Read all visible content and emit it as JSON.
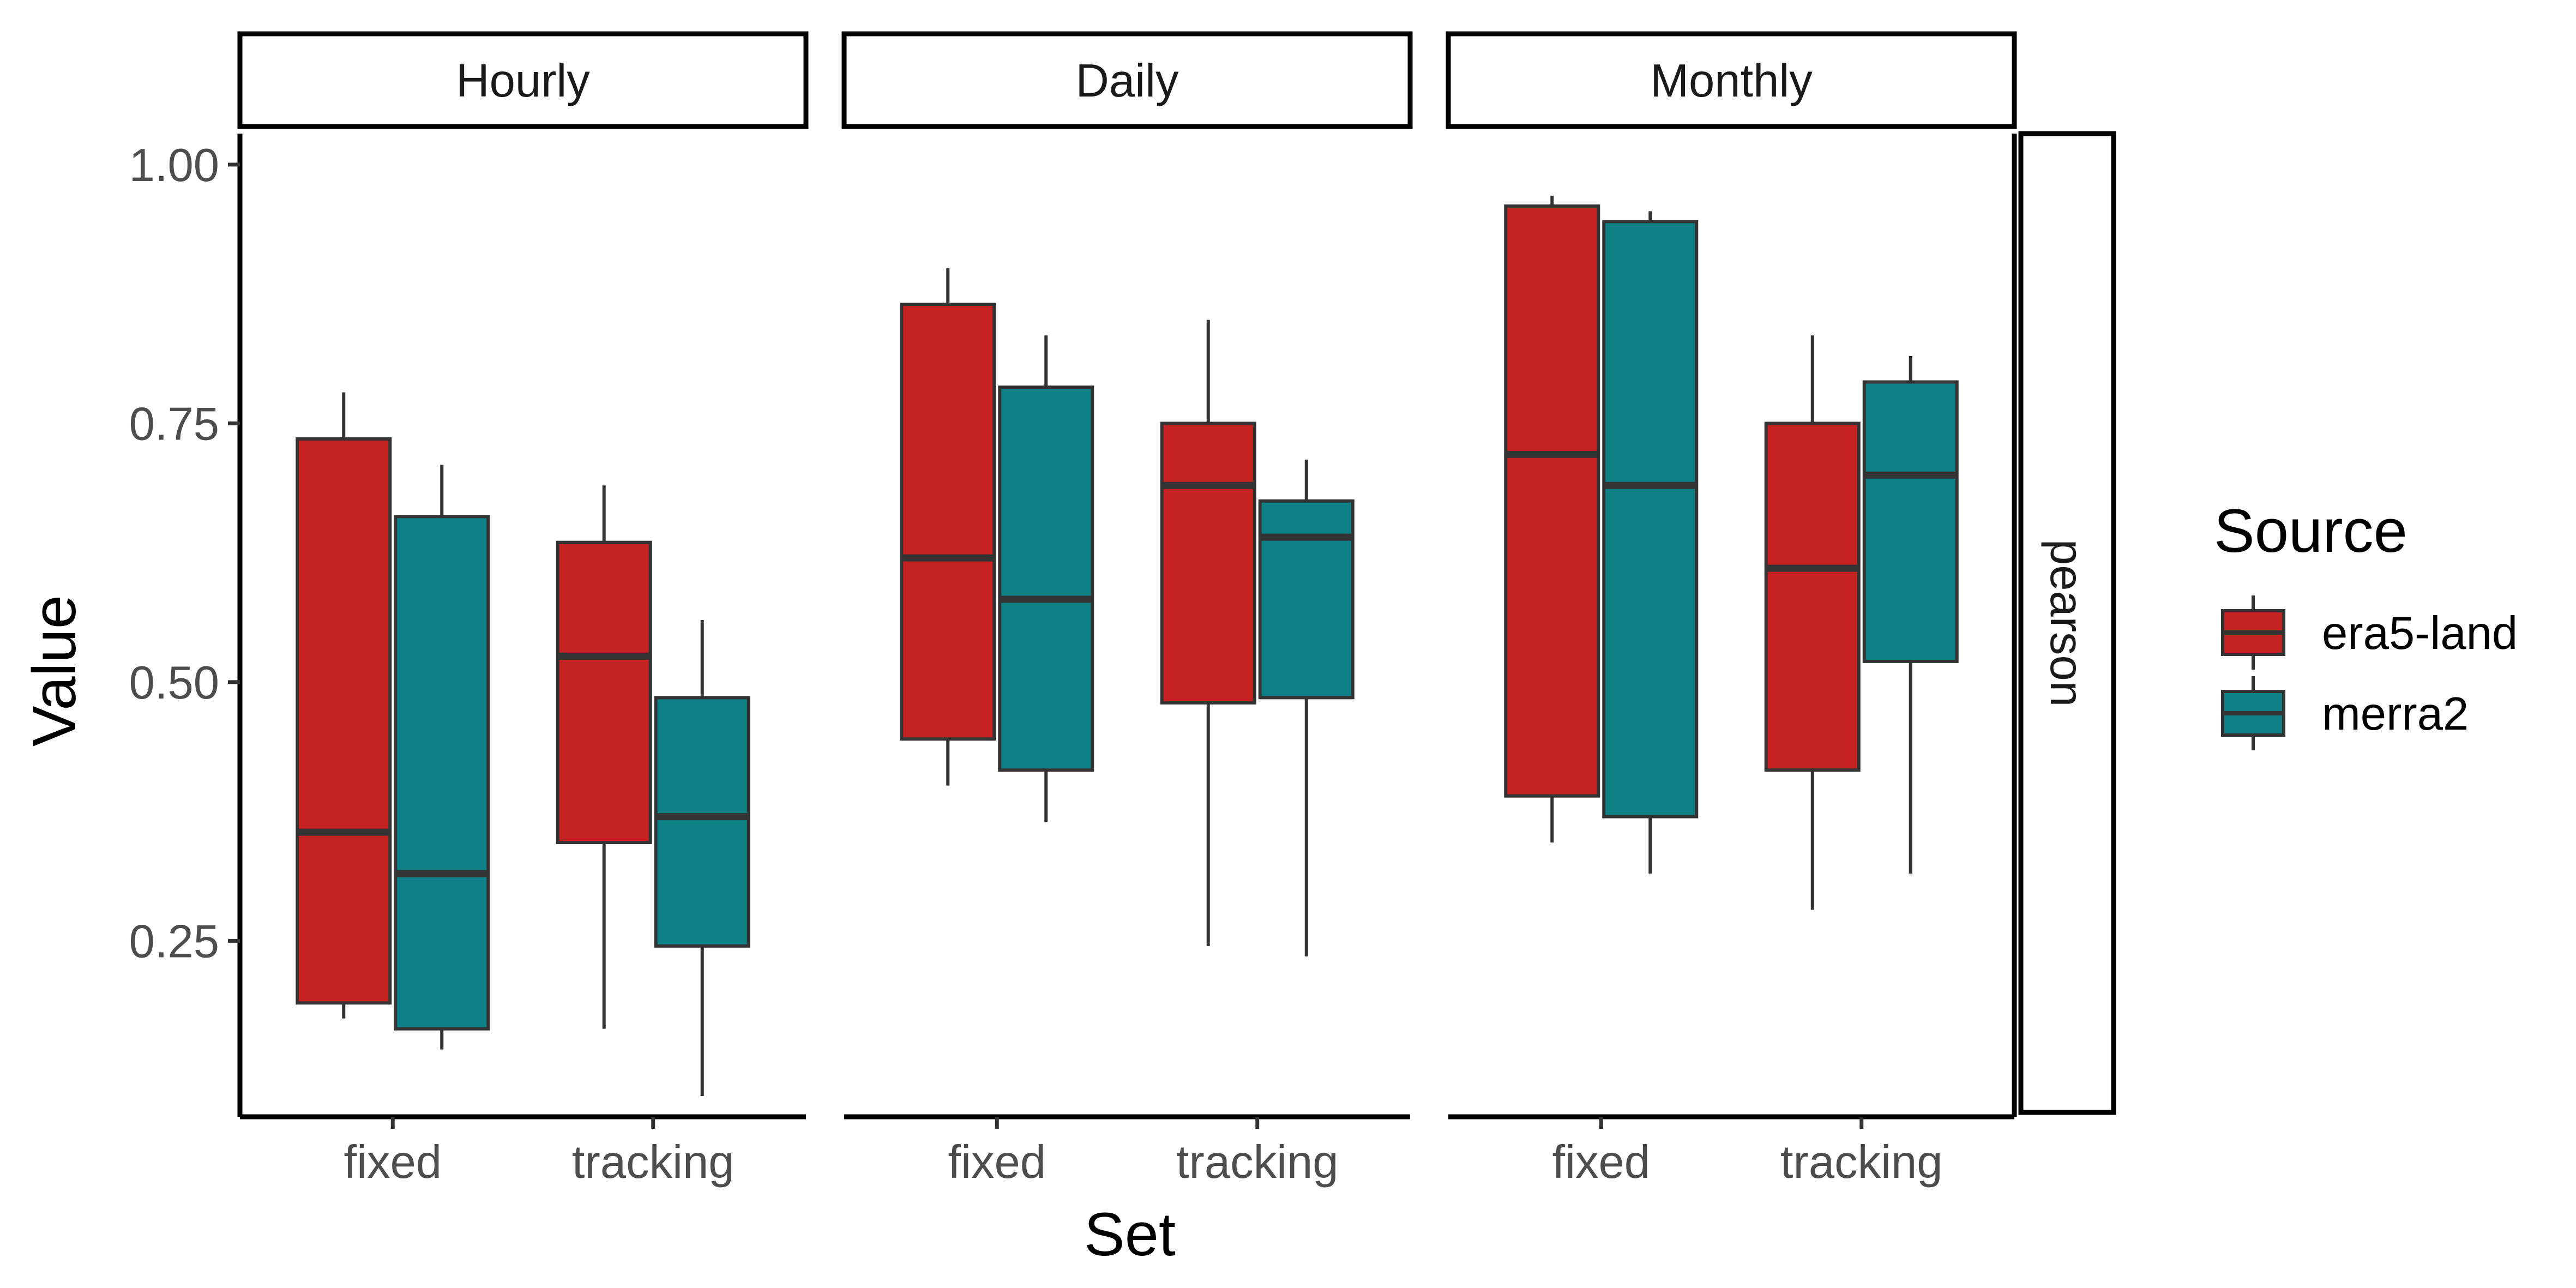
{
  "chart_data": {
    "type": "boxplot",
    "facets": [
      "Hourly",
      "Daily",
      "Monthly"
    ],
    "row_strip": "pearson",
    "categories": [
      "fixed",
      "tracking"
    ],
    "xlabel": "Set",
    "ylabel": "Value",
    "ylim": [
      0.08,
      1.03
    ],
    "yticks": [
      0.25,
      0.5,
      0.75,
      1.0
    ],
    "ytick_labels": [
      "0.25",
      "0.50",
      "0.75",
      "1.00"
    ],
    "legend": {
      "title": "Source",
      "position": "right",
      "entries": [
        {
          "name": "era5-land",
          "color": "#C62222"
        },
        {
          "name": "merra2",
          "color": "#0E8186"
        }
      ]
    },
    "series": [
      {
        "name": "era5-land",
        "color": "#C62222",
        "boxes": [
          {
            "facet": "Hourly",
            "category": "fixed",
            "min": 0.175,
            "q1": 0.19,
            "median": 0.355,
            "q3": 0.735,
            "max": 0.78
          },
          {
            "facet": "Hourly",
            "category": "tracking",
            "min": 0.165,
            "q1": 0.345,
            "median": 0.525,
            "q3": 0.635,
            "max": 0.69
          },
          {
            "facet": "Daily",
            "category": "fixed",
            "min": 0.4,
            "q1": 0.445,
            "median": 0.62,
            "q3": 0.865,
            "max": 0.9
          },
          {
            "facet": "Daily",
            "category": "tracking",
            "min": 0.245,
            "q1": 0.48,
            "median": 0.69,
            "q3": 0.75,
            "max": 0.85
          },
          {
            "facet": "Monthly",
            "category": "fixed",
            "min": 0.345,
            "q1": 0.39,
            "median": 0.72,
            "q3": 0.96,
            "max": 0.97
          },
          {
            "facet": "Monthly",
            "category": "tracking",
            "min": 0.28,
            "q1": 0.415,
            "median": 0.61,
            "q3": 0.75,
            "max": 0.835
          }
        ]
      },
      {
        "name": "merra2",
        "color": "#0E8186",
        "boxes": [
          {
            "facet": "Hourly",
            "category": "fixed",
            "min": 0.145,
            "q1": 0.165,
            "median": 0.315,
            "q3": 0.66,
            "max": 0.71
          },
          {
            "facet": "Hourly",
            "category": "tracking",
            "min": 0.1,
            "q1": 0.245,
            "median": 0.37,
            "q3": 0.485,
            "max": 0.56
          },
          {
            "facet": "Daily",
            "category": "fixed",
            "min": 0.365,
            "q1": 0.415,
            "median": 0.58,
            "q3": 0.785,
            "max": 0.835
          },
          {
            "facet": "Daily",
            "category": "tracking",
            "min": 0.235,
            "q1": 0.485,
            "median": 0.64,
            "q3": 0.675,
            "max": 0.715
          },
          {
            "facet": "Monthly",
            "category": "fixed",
            "min": 0.315,
            "q1": 0.37,
            "median": 0.69,
            "q3": 0.945,
            "max": 0.955
          },
          {
            "facet": "Monthly",
            "category": "tracking",
            "min": 0.315,
            "q1": 0.52,
            "median": 0.7,
            "q3": 0.79,
            "max": 0.815
          }
        ]
      }
    ]
  }
}
